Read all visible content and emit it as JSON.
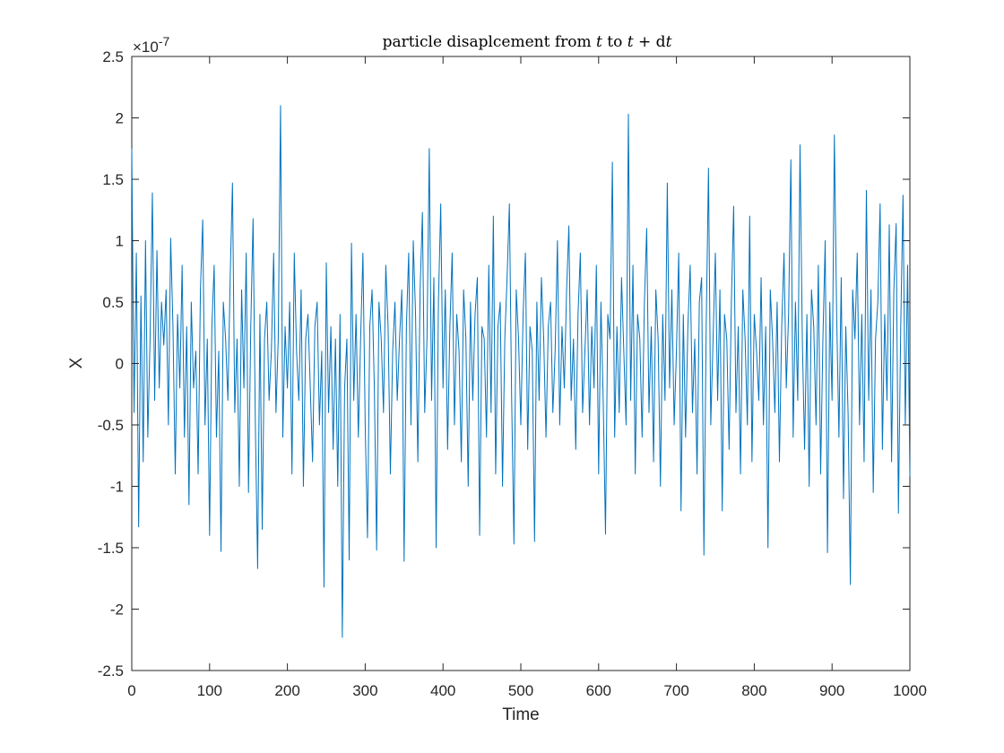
{
  "chart_data": {
    "type": "line",
    "title": "particle disaplcement from t to t + dt",
    "title_parts": {
      "prefix": "particle disaplcement from ",
      "t1": "t",
      "to": " to ",
      "t2": "t",
      "plus": " + ",
      "d": "d",
      "t3": "t"
    },
    "xlabel": "Time",
    "ylabel": "X",
    "y_multiplier": {
      "base": "×10",
      "exponent": "-7"
    },
    "xlim": [
      0,
      1000
    ],
    "ylim": [
      -2.5,
      2.5
    ],
    "xticks": [
      "0",
      "100",
      "200",
      "300",
      "400",
      "500",
      "600",
      "700",
      "800",
      "900",
      "1000"
    ],
    "yticks": [
      "-2.5",
      "-2",
      "-1.5",
      "-1",
      "-0.5",
      "0",
      "0.5",
      "1",
      "1.5",
      "2",
      "2.5"
    ],
    "grid": false,
    "line_color": "#0072BD",
    "series": [
      {
        "values": [
          1.75,
          -0.4,
          0.9,
          -1.33,
          0.55,
          -0.8,
          1.0,
          -0.6,
          0.2,
          1.39,
          -0.3,
          0.92,
          -0.2,
          0.5,
          0.15,
          0.6,
          -0.5,
          1.02,
          0.3,
          -0.9,
          0.4,
          -0.2,
          0.8,
          -0.6,
          0.3,
          -1.15,
          0.5,
          -0.2,
          0.1,
          -0.9,
          0.6,
          1.17,
          -0.5,
          0.2,
          -1.4,
          0.3,
          0.8,
          -0.6,
          0.1,
          -1.53,
          0.5,
          0.2,
          -0.3,
          0.7,
          1.47,
          -0.4,
          0.2,
          -1.0,
          0.6,
          -0.2,
          0.9,
          -1.05,
          0.3,
          1.18,
          -0.5,
          -1.67,
          0.4,
          -1.35,
          0.2,
          0.5,
          -0.3,
          0.1,
          0.9,
          -0.4,
          0.2,
          2.1,
          -0.6,
          0.3,
          -0.2,
          0.5,
          -0.9,
          0.9,
          0.1,
          -0.3,
          0.6,
          -1.0,
          0.2,
          0.4,
          -0.2,
          -0.8,
          0.3,
          0.5,
          -0.5,
          0.1,
          -1.82,
          0.82,
          -0.4,
          0.3,
          -0.7,
          0.2,
          -1.0,
          0.4,
          -2.23,
          -0.2,
          0.2,
          -1.6,
          0.98,
          -0.3,
          0.4,
          -0.6,
          0.2,
          0.9,
          -0.5,
          -1.42,
          0.3,
          0.6,
          -0.2,
          -1.52,
          0.5,
          0.2,
          -0.4,
          0.8,
          0.3,
          -0.9,
          0.1,
          0.5,
          -0.3,
          0.2,
          0.6,
          -1.61,
          0.3,
          0.9,
          -0.5,
          1.0,
          0.4,
          -0.8,
          0.6,
          1.23,
          -0.4,
          0.2,
          1.75,
          -0.3,
          0.7,
          -1.5,
          0.5,
          1.3,
          -0.2,
          0.6,
          -0.7,
          0.3,
          0.9,
          -0.5,
          0.4,
          0.1,
          -0.8,
          0.6,
          0.2,
          -1.0,
          0.5,
          -0.3,
          0.4,
          0.7,
          -1.4,
          0.3,
          0.2,
          -0.6,
          0.8,
          -0.4,
          1.2,
          -0.9,
          0.3,
          0.5,
          -1.0,
          0.2,
          0.7,
          1.3,
          -0.3,
          -1.47,
          0.6,
          0.2,
          -0.5,
          0.4,
          0.9,
          -0.7,
          0.3,
          0.1,
          -1.45,
          0.5,
          -0.3,
          0.7,
          0.2,
          -0.6,
          0.3,
          0.5,
          -0.4,
          0.1,
          1.0,
          -0.5,
          0.3,
          -0.2,
          0.6,
          1.12,
          -0.3,
          0.2,
          -0.7,
          0.4,
          0.9,
          -0.4,
          0.1,
          0.6,
          -0.5,
          0.3,
          -0.2,
          0.8,
          -0.9,
          0.5,
          -0.3,
          -1.39,
          0.4,
          0.2,
          1.64,
          -0.6,
          0.3,
          -0.4,
          0.7,
          0.1,
          -0.5,
          2.03,
          -0.3,
          0.8,
          -0.9,
          0.4,
          0.2,
          -0.6,
          0.5,
          1.1,
          -0.4,
          0.3,
          -0.8,
          0.6,
          0.2,
          -1.0,
          0.4,
          -0.3,
          1.47,
          -0.2,
          0.6,
          -0.5,
          0.1,
          0.9,
          -1.2,
          0.4,
          -0.6,
          0.3,
          0.8,
          -0.4,
          0.2,
          -0.9,
          0.5,
          0.7,
          -1.56,
          0.3,
          1.59,
          -0.5,
          0.2,
          0.9,
          -0.3,
          0.6,
          -1.2,
          0.4,
          0.2,
          -0.7,
          0.5,
          1.28,
          -0.4,
          0.3,
          -0.9,
          0.6,
          0.2,
          -0.5,
          1.2,
          -0.8,
          0.4,
          0.1,
          -0.3,
          0.7,
          -0.5,
          0.3,
          -1.5,
          0.6,
          0.2,
          -0.4,
          0.5,
          -0.8,
          0.3,
          0.9,
          -0.2,
          0.4,
          1.66,
          -0.6,
          0.5,
          -0.3,
          1.78,
          0.2,
          -0.7,
          0.4,
          -1.0,
          0.6,
          0.3,
          -0.5,
          0.8,
          -0.9,
          0.2,
          1.0,
          -1.54,
          0.5,
          -0.3,
          1.86,
          0.4,
          -0.6,
          0.7,
          -1.1,
          0.3,
          -0.4,
          -1.8,
          0.6,
          0.2,
          0.9,
          -0.5,
          0.4,
          -0.8,
          1.41,
          -0.3,
          0.6,
          -1.05,
          0.2,
          0.5,
          1.3,
          -0.7,
          0.4,
          -0.3,
          1.13,
          -0.8,
          0.6,
          1.14,
          -1.22,
          0.3,
          1.37,
          -0.5,
          0.8,
          -0.92
        ]
      }
    ]
  }
}
